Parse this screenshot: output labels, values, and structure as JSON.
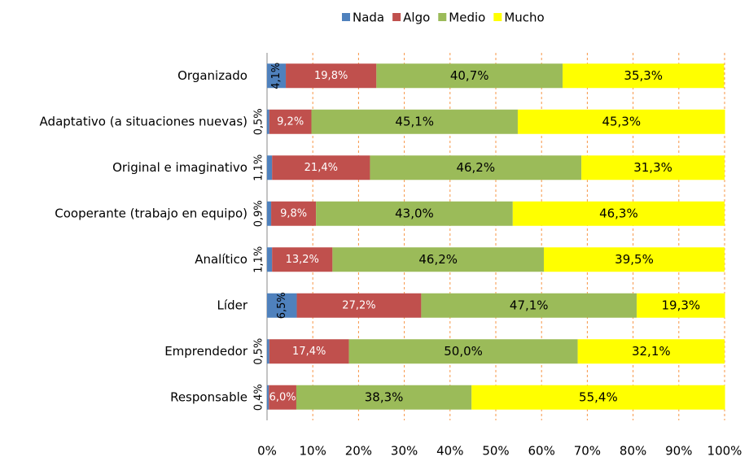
{
  "chart_data": {
    "type": "stacked_bar_horizontal",
    "categories": [
      "Organizado",
      "Adaptativo (a situaciones nuevas)",
      "Original e imaginativo",
      "Cooperante (trabajo en equipo)",
      "Analítico",
      "Líder",
      "Emprendedor",
      "Responsable"
    ],
    "series": [
      {
        "name": "Nada",
        "color": "#4f81bd",
        "values": [
          4.1,
          0.5,
          1.1,
          0.9,
          1.1,
          6.5,
          0.5,
          0.4
        ],
        "value_labels": [
          "4,1%",
          "0,5%",
          "1,1%",
          "0,9%",
          "1,1%",
          "6,5%",
          "0,5%",
          "0,4%"
        ]
      },
      {
        "name": "Algo",
        "color": "#c0504d",
        "values": [
          19.8,
          9.2,
          21.4,
          9.8,
          13.2,
          27.2,
          17.4,
          6.0
        ],
        "value_labels": [
          "19,8%",
          "9,2%",
          "21,4%",
          "9,8%",
          "13,2%",
          "27,2%",
          "17,4%",
          "6,0%"
        ]
      },
      {
        "name": "Medio",
        "color": "#9bbb59",
        "values": [
          40.7,
          45.1,
          46.2,
          43.0,
          46.2,
          47.1,
          50.0,
          38.3
        ],
        "value_labels": [
          "40,7%",
          "45,1%",
          "46,2%",
          "43,0%",
          "46,2%",
          "47,1%",
          "50,0%",
          "38,3%"
        ]
      },
      {
        "name": "Mucho",
        "color": "#ffff00",
        "values": [
          35.3,
          45.3,
          31.3,
          46.3,
          39.5,
          19.3,
          32.1,
          55.4
        ],
        "value_labels": [
          "35,3%",
          "45,3%",
          "31,3%",
          "46,3%",
          "39,5%",
          "19,3%",
          "32,1%",
          "55,4%"
        ]
      }
    ],
    "xlim": [
      0,
      100
    ],
    "xticks": [
      {
        "value": 0,
        "label": "0%"
      },
      {
        "value": 10,
        "label": "10%"
      },
      {
        "value": 20,
        "label": "20%"
      },
      {
        "value": 30,
        "label": "30%"
      },
      {
        "value": 40,
        "label": "40%"
      },
      {
        "value": 50,
        "label": "50%"
      },
      {
        "value": 60,
        "label": "60%"
      },
      {
        "value": 70,
        "label": "70%"
      },
      {
        "value": 80,
        "label": "80%"
      },
      {
        "value": 90,
        "label": "90%"
      },
      {
        "value": 100,
        "label": "100%"
      }
    ],
    "grid": true,
    "legend": "top"
  }
}
